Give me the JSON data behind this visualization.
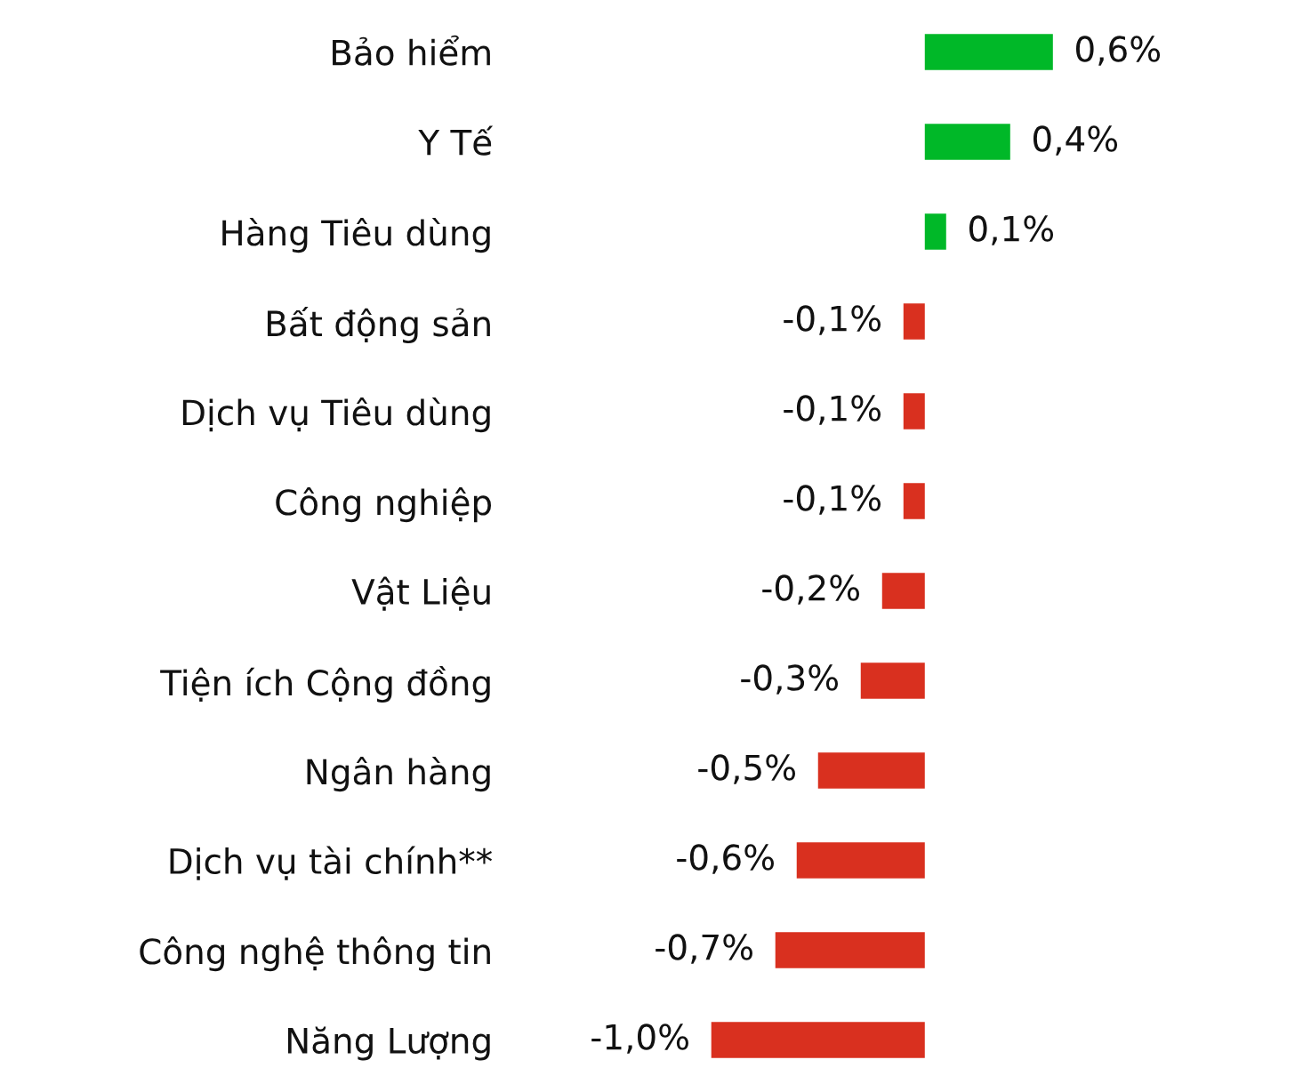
{
  "chart_data": {
    "type": "bar",
    "orientation": "horizontal",
    "tick_labels": "y",
    "categories": [
      "Bảo hiểm",
      "Y Tế",
      "Hàng Tiêu dùng",
      "Bất động sản",
      "Dịch vụ Tiêu dùng",
      "Công nghiệp",
      "Vật Liệu",
      "Tiện ích Cộng đồng",
      "Ngân hàng",
      "Dịch vụ tài chính**",
      "Công nghệ thông tin",
      "Năng Lượng"
    ],
    "values": [
      0.6,
      0.4,
      0.1,
      -0.1,
      -0.1,
      -0.1,
      -0.2,
      -0.3,
      -0.5,
      -0.6,
      -0.7,
      -1.0
    ],
    "colors": [
      "#00b828",
      "#00b828",
      "#00b828",
      "#d9301f",
      "#d9301f",
      "#d9301f",
      "#d9301f",
      "#d9301f",
      "#d9301f",
      "#d9301f",
      "#d9301f",
      "#d9301f"
    ],
    "value_labels": [
      "0,6%",
      "0,4%",
      "0,1%",
      "-0,1%",
      "-0,1%",
      "-0,1%",
      "-0,2%",
      "-0,3%",
      "-0,5%",
      "-0,6%",
      "-0,7%",
      "-1,0%"
    ]
  }
}
